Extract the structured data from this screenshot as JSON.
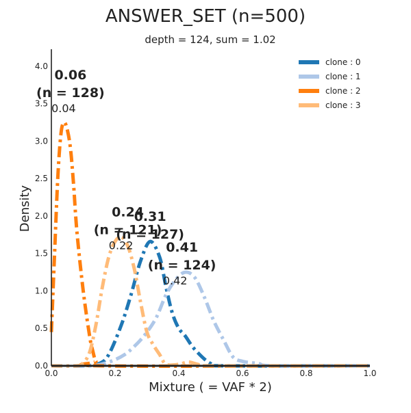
{
  "chart_data": {
    "type": "line",
    "title": "ANSWER_SET (n=500)",
    "subtitle": "depth = 124, sum  = 1.02",
    "xlabel": "Mixture ( = VAF * 2)",
    "ylabel": "Density",
    "xlim": [
      0.0,
      1.0
    ],
    "ylim": [
      0.0,
      4.2
    ],
    "xticks": [
      "0.0",
      "0.2",
      "0.4",
      "0.6",
      "0.8",
      "1.0"
    ],
    "yticks": [
      "0.0",
      "0.5",
      "1.0",
      "1.5",
      "2.0",
      "2.5",
      "3.0",
      "3.5",
      "4.0"
    ],
    "grid": false,
    "legend_position": "top-right",
    "series": [
      {
        "name": "clone : 0",
        "color": "#1f77b4",
        "x": [
          0.0,
          0.1,
          0.15,
          0.18,
          0.22,
          0.25,
          0.28,
          0.31,
          0.34,
          0.36,
          0.38,
          0.4,
          0.42,
          0.45,
          0.5,
          0.55,
          1.0
        ],
        "y": [
          0.0,
          0.0,
          0.03,
          0.15,
          0.55,
          0.95,
          1.4,
          1.66,
          1.45,
          1.05,
          0.7,
          0.5,
          0.4,
          0.22,
          0.03,
          0.0,
          0.0
        ]
      },
      {
        "name": "clone : 1",
        "color": "#aec7e8",
        "x": [
          0.0,
          0.12,
          0.18,
          0.23,
          0.27,
          0.3,
          0.33,
          0.36,
          0.39,
          0.42,
          0.45,
          0.48,
          0.51,
          0.54,
          0.57,
          0.6,
          0.65,
          0.7,
          1.0
        ],
        "y": [
          0.0,
          0.0,
          0.05,
          0.15,
          0.3,
          0.45,
          0.65,
          0.95,
          1.15,
          1.25,
          1.18,
          0.92,
          0.6,
          0.35,
          0.12,
          0.06,
          0.03,
          0.0,
          0.0
        ]
      },
      {
        "name": "clone : 2",
        "color": "#ff7f0e",
        "x": [
          0.0,
          0.01,
          0.02,
          0.03,
          0.04,
          0.05,
          0.06,
          0.07,
          0.08,
          0.1,
          0.12,
          0.13,
          0.14,
          0.16,
          1.0
        ],
        "y": [
          0.45,
          1.5,
          2.5,
          3.1,
          3.25,
          3.15,
          2.9,
          2.4,
          1.8,
          1.0,
          0.4,
          0.2,
          0.06,
          0.0,
          0.0
        ]
      },
      {
        "name": "clone : 3",
        "color": "#ffbb78",
        "x": [
          0.0,
          0.08,
          0.1,
          0.12,
          0.14,
          0.16,
          0.18,
          0.2,
          0.22,
          0.24,
          0.26,
          0.28,
          0.3,
          0.32,
          0.34,
          0.36,
          0.4,
          0.43,
          0.46,
          0.5,
          1.0
        ],
        "y": [
          0.0,
          0.0,
          0.04,
          0.18,
          0.55,
          1.05,
          1.45,
          1.66,
          1.72,
          1.6,
          1.3,
          0.85,
          0.45,
          0.28,
          0.15,
          0.02,
          0.02,
          0.05,
          0.02,
          0.0,
          0.0
        ]
      }
    ],
    "annotations": [
      {
        "bold": "0.06",
        "label": "(n = 128)",
        "value": "0.04",
        "x": 0.06,
        "y": 3.55
      },
      {
        "bold": "0.24",
        "label": "(n = 121)",
        "value": "0.22",
        "x": 0.24,
        "y": 1.72
      },
      {
        "bold": "0.31",
        "label": "(n = 127)",
        "value": "",
        "x": 0.31,
        "y": 1.66
      },
      {
        "bold": "0.41",
        "label": "(n = 124)",
        "value": "0.42",
        "x": 0.41,
        "y": 1.25
      }
    ]
  }
}
